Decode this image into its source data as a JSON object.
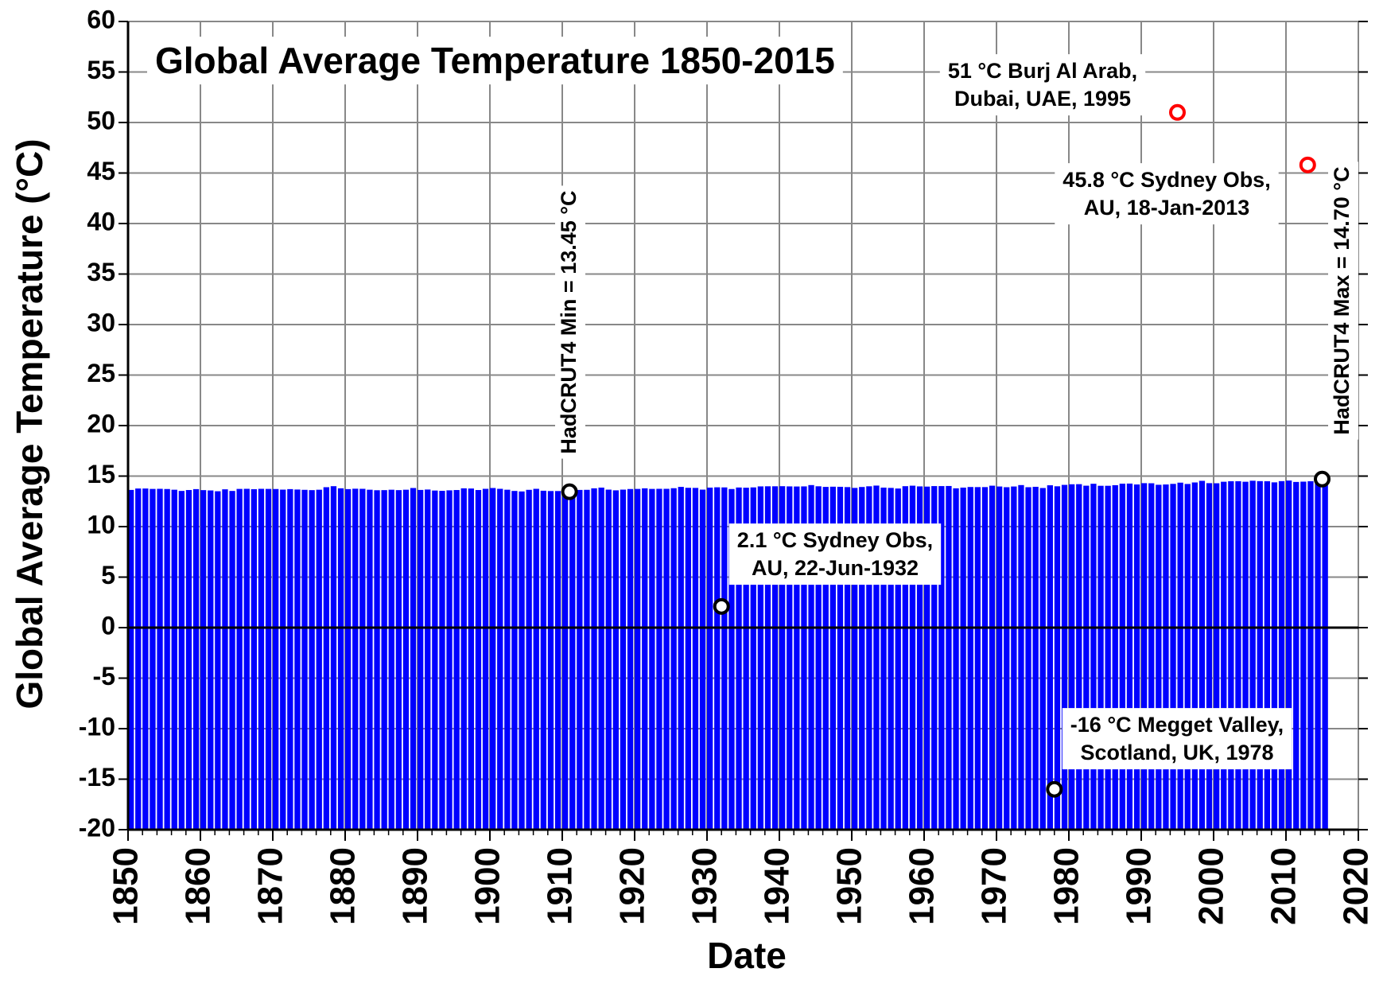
{
  "chart_data": {
    "type": "bar",
    "title": "Global Average Temperature 1850-2015",
    "xlabel": "Date",
    "ylabel": "Global Average Temperature (°C)",
    "x": [
      1850,
      1851,
      1852,
      1853,
      1854,
      1855,
      1856,
      1857,
      1858,
      1859,
      1860,
      1861,
      1862,
      1863,
      1864,
      1865,
      1866,
      1867,
      1868,
      1869,
      1870,
      1871,
      1872,
      1873,
      1874,
      1875,
      1876,
      1877,
      1878,
      1879,
      1880,
      1881,
      1882,
      1883,
      1884,
      1885,
      1886,
      1887,
      1888,
      1889,
      1890,
      1891,
      1892,
      1893,
      1894,
      1895,
      1896,
      1897,
      1898,
      1899,
      1900,
      1901,
      1902,
      1903,
      1904,
      1905,
      1906,
      1907,
      1908,
      1909,
      1910,
      1911,
      1912,
      1913,
      1914,
      1915,
      1916,
      1917,
      1918,
      1919,
      1920,
      1921,
      1922,
      1923,
      1924,
      1925,
      1926,
      1927,
      1928,
      1929,
      1930,
      1931,
      1932,
      1933,
      1934,
      1935,
      1936,
      1937,
      1938,
      1939,
      1940,
      1941,
      1942,
      1943,
      1944,
      1945,
      1946,
      1947,
      1948,
      1949,
      1950,
      1951,
      1952,
      1953,
      1954,
      1955,
      1956,
      1957,
      1958,
      1959,
      1960,
      1961,
      1962,
      1963,
      1964,
      1965,
      1966,
      1967,
      1968,
      1969,
      1970,
      1971,
      1972,
      1973,
      1974,
      1975,
      1976,
      1977,
      1978,
      1979,
      1980,
      1981,
      1982,
      1983,
      1984,
      1985,
      1986,
      1987,
      1988,
      1989,
      1990,
      1991,
      1992,
      1993,
      1994,
      1995,
      1996,
      1997,
      1998,
      1999,
      2000,
      2001,
      2002,
      2003,
      2004,
      2005,
      2006,
      2007,
      2008,
      2009,
      2010,
      2011,
      2012,
      2013,
      2014,
      2015
    ],
    "values": [
      13.63,
      13.77,
      13.77,
      13.73,
      13.74,
      13.72,
      13.65,
      13.53,
      13.62,
      13.71,
      13.61,
      13.58,
      13.5,
      13.69,
      13.53,
      13.73,
      13.74,
      13.7,
      13.74,
      13.73,
      13.72,
      13.66,
      13.71,
      13.67,
      13.64,
      13.61,
      13.65,
      13.9,
      14.0,
      13.79,
      13.71,
      13.75,
      13.74,
      13.65,
      13.6,
      13.61,
      13.65,
      13.61,
      13.65,
      13.82,
      13.63,
      13.67,
      13.57,
      13.54,
      13.59,
      13.62,
      13.79,
      13.77,
      13.62,
      13.74,
      13.82,
      13.74,
      13.65,
      13.53,
      13.48,
      13.64,
      13.74,
      13.55,
      13.52,
      13.52,
      13.53,
      13.45,
      13.63,
      13.64,
      13.79,
      13.86,
      13.66,
      13.59,
      13.66,
      13.72,
      13.73,
      13.79,
      13.73,
      13.74,
      13.74,
      13.8,
      13.93,
      13.84,
      13.83,
      13.66,
      13.86,
      13.89,
      13.88,
      13.72,
      13.87,
      13.85,
      13.88,
      13.98,
      13.99,
      13.99,
      14.0,
      13.98,
      13.97,
      13.98,
      14.11,
      13.99,
      13.93,
      13.95,
      13.94,
      13.91,
      13.83,
      13.92,
      13.99,
      14.06,
      13.86,
      13.83,
      13.77,
      14.0,
      14.05,
      13.98,
      13.96,
      14.01,
      14.01,
      14.02,
      13.79,
      13.86,
      13.92,
      13.91,
      13.91,
      14.05,
      13.97,
      13.9,
      13.97,
      14.11,
      13.9,
      13.94,
      13.82,
      14.09,
      13.99,
      14.13,
      14.19,
      14.2,
      14.05,
      14.24,
      14.04,
      14.04,
      14.1,
      14.25,
      14.26,
      14.17,
      14.3,
      14.29,
      14.14,
      14.17,
      14.23,
      14.35,
      14.22,
      14.37,
      14.53,
      14.3,
      14.29,
      14.44,
      14.49,
      14.49,
      14.44,
      14.54,
      14.5,
      14.49,
      14.38,
      14.5,
      14.56,
      14.42,
      14.45,
      14.49,
      14.57,
      14.7
    ],
    "color": "#0000ff",
    "xlim": [
      1850,
      2020
    ],
    "xticks": [
      1850,
      1860,
      1870,
      1880,
      1890,
      1900,
      1910,
      1920,
      1930,
      1940,
      1950,
      1960,
      1970,
      1980,
      1990,
      2000,
      2010,
      2020
    ],
    "ylim": [
      -20,
      60
    ],
    "yticks": [
      -20,
      -15,
      -10,
      -5,
      0,
      5,
      10,
      15,
      20,
      25,
      30,
      35,
      40,
      45,
      50,
      55,
      60
    ],
    "grid": true,
    "points": [
      {
        "x": 1911,
        "y": 13.45,
        "color": "#000000",
        "label": [
          "HadCRUT4 Min = 13.45 °C"
        ]
      },
      {
        "x": 2015,
        "y": 14.7,
        "color": "#000000",
        "label": [
          "HadCRUT4 Max = 14.70 °C"
        ]
      },
      {
        "x": 1995,
        "y": 51,
        "color": "#ff0000",
        "label": [
          "51 °C Burj Al Arab,",
          "Dubai, UAE, 1995"
        ]
      },
      {
        "x": 2013,
        "y": 45.8,
        "color": "#ff0000",
        "label": [
          "45.8 °C Sydney Obs,",
          "AU,  18-Jan-2013"
        ]
      },
      {
        "x": 1932,
        "y": 2.1,
        "color": "#000000",
        "label": [
          "2.1 °C Sydney Obs,",
          "AU, 22-Jun-1932"
        ]
      },
      {
        "x": 1978,
        "y": -16,
        "color": "#000000",
        "label": [
          "-16 °C Megget Valley,",
          "Scotland, UK, 1978"
        ]
      }
    ]
  }
}
